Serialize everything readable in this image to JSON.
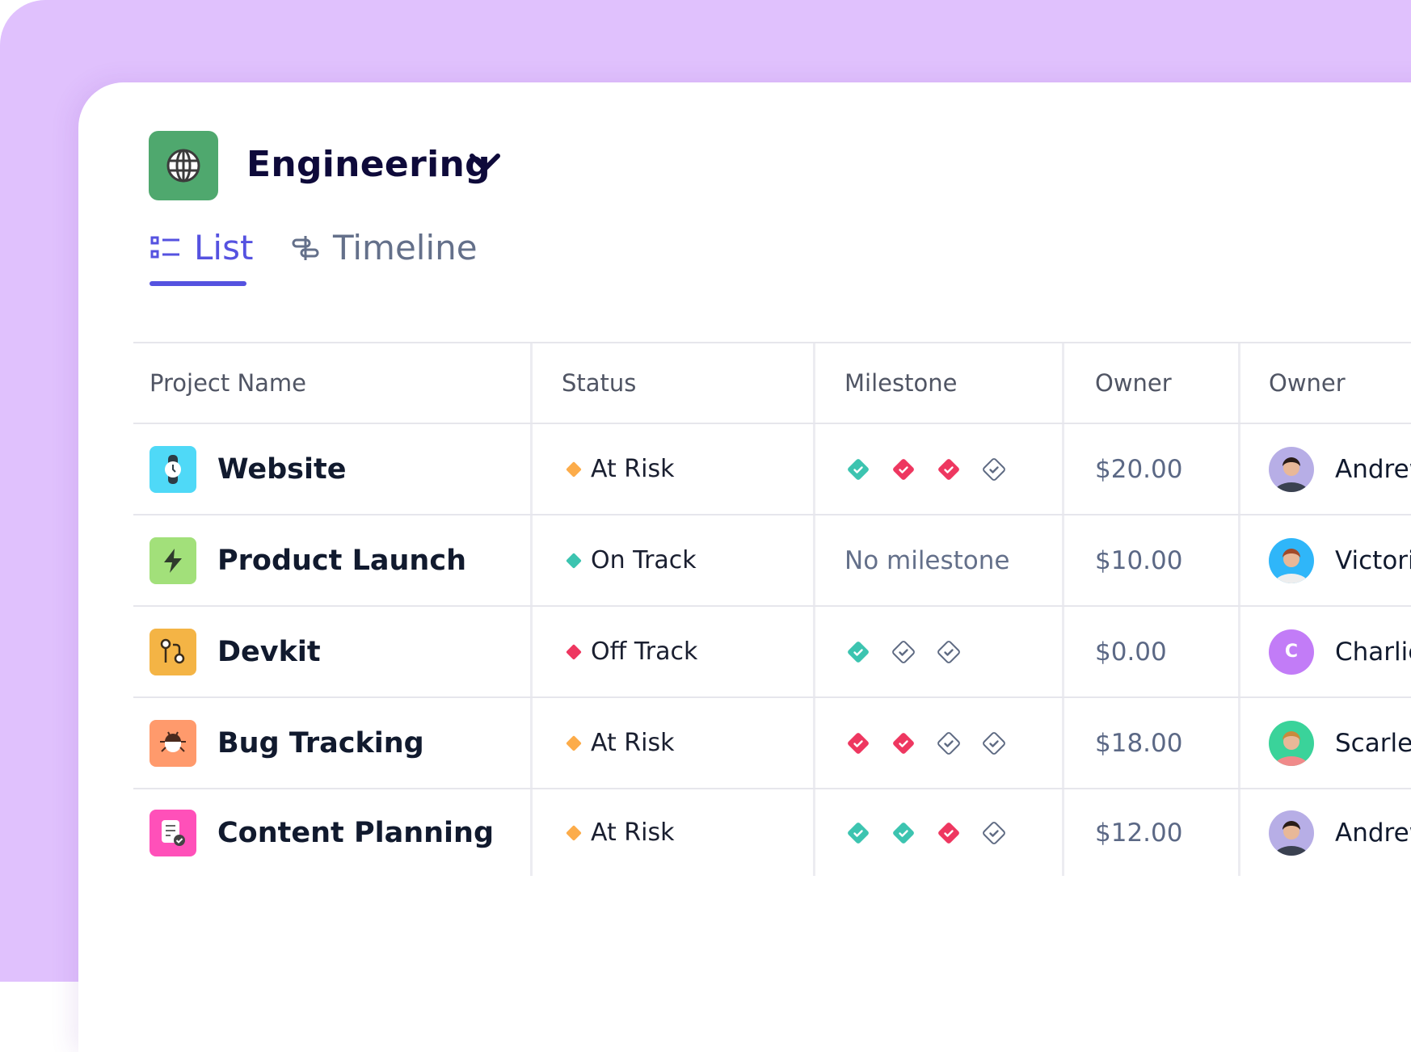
{
  "workspace": {
    "title": "Engineering",
    "icon": "globe-icon",
    "icon_color": "#4fa86e"
  },
  "tabs": [
    {
      "label": "List",
      "icon": "list-icon",
      "active": true
    },
    {
      "label": "Timeline",
      "icon": "timeline-icon",
      "active": false
    }
  ],
  "accent": "#5552e0",
  "table": {
    "headers": [
      "Project Name",
      "Status",
      "Milestone",
      "Owner",
      "Owner"
    ],
    "rows": [
      {
        "name": "Website",
        "icon": "watch-icon",
        "icon_color": "#4fd9f7",
        "status": "At Risk",
        "status_color": "#fcac4a",
        "milestones": [
          "done",
          "missed",
          "missed",
          "pending"
        ],
        "milestone_text": "",
        "amount": "$20.00",
        "owner": "Andrew",
        "avatar_color": "#b7aee6",
        "avatar_initial": ""
      },
      {
        "name": "Product Launch",
        "icon": "lightning-icon",
        "icon_color": "#a2e07a",
        "status": "On Track",
        "status_color": "#3cc4b0",
        "milestones": [],
        "milestone_text": "No milestone",
        "amount": "$10.00",
        "owner": "Victori",
        "avatar_color": "#2fb6f9",
        "avatar_initial": ""
      },
      {
        "name": "Devkit",
        "icon": "git-pull-icon",
        "icon_color": "#f4b445",
        "status": "Off Track",
        "status_color": "#ee3760",
        "milestones": [
          "done",
          "pending",
          "pending"
        ],
        "milestone_text": "",
        "amount": "$0.00",
        "owner": "Charlie",
        "avatar_color": "#c27cf7",
        "avatar_initial": "C"
      },
      {
        "name": "Bug Tracking",
        "icon": "bug-icon",
        "icon_color": "#ff9a6c",
        "status": "At Risk",
        "status_color": "#fcac4a",
        "milestones": [
          "missed",
          "missed",
          "pending",
          "pending"
        ],
        "milestone_text": "",
        "amount": "$18.00",
        "owner": "Scarlet",
        "avatar_color": "#3ad39a",
        "avatar_initial": ""
      },
      {
        "name": "Content Planning",
        "icon": "document-check-icon",
        "icon_color": "#ff50b9",
        "status": "At Risk",
        "status_color": "#fcac4a",
        "milestones": [
          "done",
          "done",
          "missed",
          "pending"
        ],
        "milestone_text": "",
        "amount": "$12.00",
        "owner": "Andrew",
        "avatar_color": "#b7aee6",
        "avatar_initial": ""
      }
    ]
  },
  "milestone_colors": {
    "done": "#3cc4b0",
    "missed": "#ee3760",
    "pending": "#5f6b83"
  }
}
